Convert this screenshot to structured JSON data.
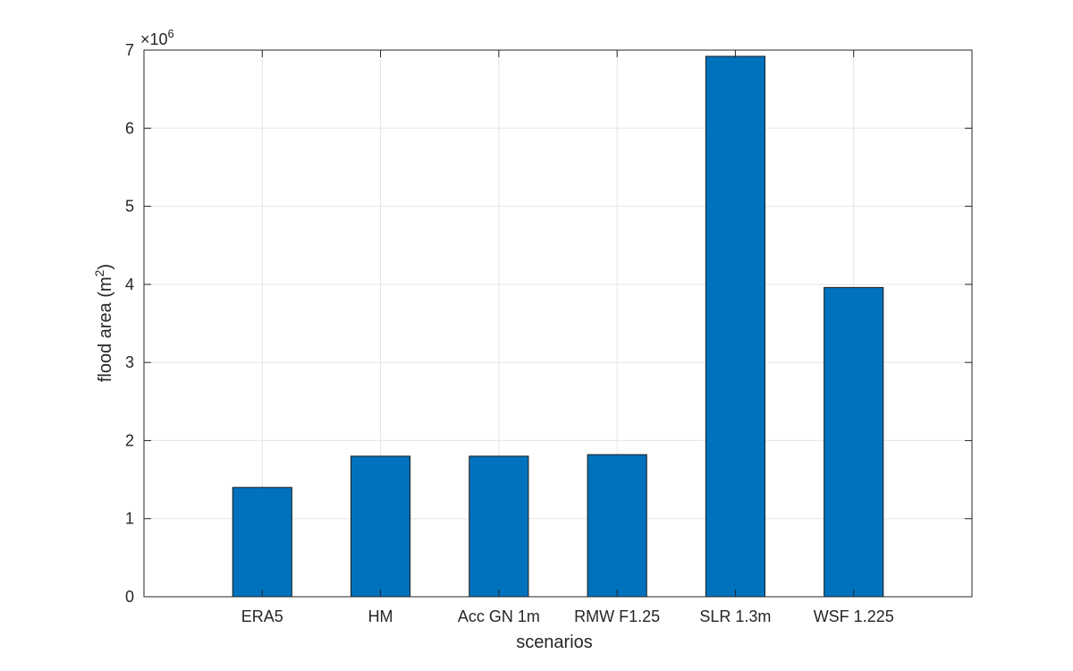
{
  "chart_data": {
    "type": "bar",
    "title": "",
    "xlabel": "scenarios",
    "ylabel_main": "flood area (m",
    "ylabel_superscript": "2",
    "ylabel_suffix": ")",
    "categories": [
      "ERA5",
      "HM",
      "Acc GN 1m",
      "RMW F1.25",
      "SLR 1.3m",
      "WSF 1.225"
    ],
    "values": [
      1400000,
      1800000,
      1800000,
      1820000,
      6920000,
      3960000
    ],
    "ylim": [
      0,
      7000000
    ],
    "yticks": [
      0,
      1000000,
      2000000,
      3000000,
      4000000,
      5000000,
      6000000,
      7000000
    ],
    "ytick_labels": [
      "0",
      "1",
      "2",
      "3",
      "4",
      "5",
      "6",
      "7"
    ],
    "y_exponent_base": "×10",
    "y_exponent_power": "6",
    "x_range": [
      0,
      7
    ],
    "grid": true,
    "colors": {
      "bar_fill": "#0072BD",
      "bar_stroke": "#1a1a1a",
      "grid": "#e5e5e5",
      "axis": "#262626"
    }
  }
}
